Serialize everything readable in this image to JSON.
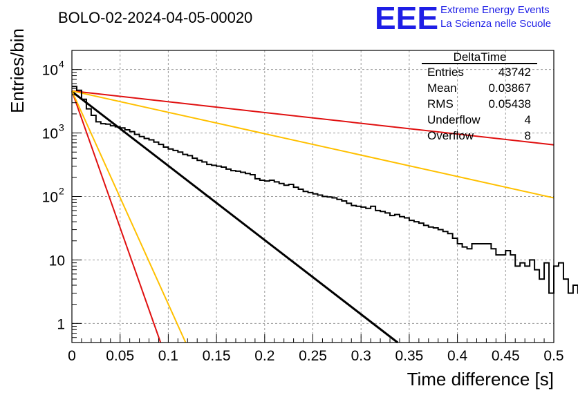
{
  "title": "BOLO-02-2024-04-05-00020",
  "logo": {
    "mark": "EEE",
    "line1": "Extreme Energy Events",
    "line2": "La Scienza nelle Scuole",
    "color": "#1e1ee6"
  },
  "stats_box": {
    "title": "DeltaTime",
    "rows": [
      {
        "label": "Entries",
        "value": "43742"
      },
      {
        "label": "Mean",
        "value": "0.03867"
      },
      {
        "label": "RMS",
        "value": "0.05438"
      },
      {
        "label": "Underflow",
        "value": "4"
      },
      {
        "label": "Overflow",
        "value": "8"
      }
    ]
  },
  "chart_data": {
    "type": "line",
    "xlabel": "Time difference [s]",
    "ylabel": "Entries/bin",
    "xlim": [
      0,
      0.5
    ],
    "ylim": [
      0.5,
      20000
    ],
    "y_scale": "log",
    "grid": true,
    "x_tick_labels": [
      "0",
      "0.05",
      "0.1",
      "0.15",
      "0.2",
      "0.25",
      "0.3",
      "0.35",
      "0.4",
      "0.45",
      "0.5"
    ],
    "x_ticks": [
      0,
      0.05,
      0.1,
      0.15,
      0.2,
      0.25,
      0.3,
      0.35,
      0.4,
      0.45,
      0.5
    ],
    "y_tick_labels": [
      {
        "value": 1,
        "base": "1",
        "exp": ""
      },
      {
        "value": 10,
        "base": "10",
        "exp": ""
      },
      {
        "value": 100,
        "base": "10",
        "exp": "2"
      },
      {
        "value": 1000,
        "base": "10",
        "exp": "3"
      },
      {
        "value": 10000,
        "base": "10",
        "exp": "4"
      }
    ],
    "histogram": {
      "color": "#000000",
      "bin_width": 0.005,
      "values": [
        5400,
        4700,
        3400,
        2400,
        1900,
        1500,
        1400,
        1380,
        1300,
        1250,
        1200,
        1120,
        1050,
        950,
        880,
        820,
        780,
        720,
        660,
        600,
        560,
        530,
        500,
        460,
        440,
        400,
        370,
        350,
        320,
        310,
        300,
        290,
        270,
        255,
        250,
        240,
        230,
        220,
        190,
        180,
        175,
        180,
        170,
        160,
        150,
        155,
        140,
        130,
        120,
        115,
        110,
        105,
        100,
        98,
        95,
        90,
        85,
        78,
        72,
        70,
        68,
        65,
        70,
        60,
        58,
        55,
        50,
        52,
        48,
        46,
        42,
        40,
        38,
        35,
        33,
        32,
        30,
        28,
        26,
        22,
        18,
        16,
        15,
        18,
        18,
        18,
        18,
        15,
        12,
        12,
        14,
        12,
        8,
        9,
        8,
        10,
        7,
        5,
        9,
        3,
        8,
        9,
        5,
        3,
        4,
        3,
        2,
        3,
        6,
        2,
        4,
        2,
        3,
        2,
        4,
        1,
        5,
        2,
        1,
        1,
        1,
        1,
        2,
        1,
        1,
        2,
        1,
        1,
        2,
        4,
        1,
        1,
        3,
        1,
        1,
        1,
        1,
        1,
        1,
        3,
        2,
        1,
        1,
        1,
        2,
        0,
        1,
        1,
        2,
        1,
        1,
        3,
        1,
        1,
        1,
        1,
        2,
        1,
        1,
        1,
        1,
        1,
        0,
        1,
        2,
        1,
        0,
        1,
        3,
        1,
        1,
        0,
        2,
        2,
        1,
        1,
        1,
        0,
        1,
        1,
        1,
        0,
        2,
        1,
        1,
        2,
        1,
        0,
        1,
        1,
        1,
        1,
        0,
        1,
        1,
        1,
        1,
        1,
        1,
        1
      ]
    },
    "fits": [
      {
        "color": "#000000",
        "x": [
          0,
          0.338
        ],
        "y": [
          4500,
          0.5
        ]
      },
      {
        "color": "#e01010",
        "x": [
          0,
          0.5
        ],
        "y": [
          4600,
          650
        ]
      },
      {
        "color": "#ffc000",
        "x": [
          0,
          0.5
        ],
        "y": [
          4600,
          95
        ]
      },
      {
        "color": "#e01010",
        "x": [
          0,
          0.092
        ],
        "y": [
          4600,
          0.5
        ]
      },
      {
        "color": "#ffc000",
        "x": [
          0,
          0.118
        ],
        "y": [
          4600,
          0.5
        ]
      }
    ]
  }
}
